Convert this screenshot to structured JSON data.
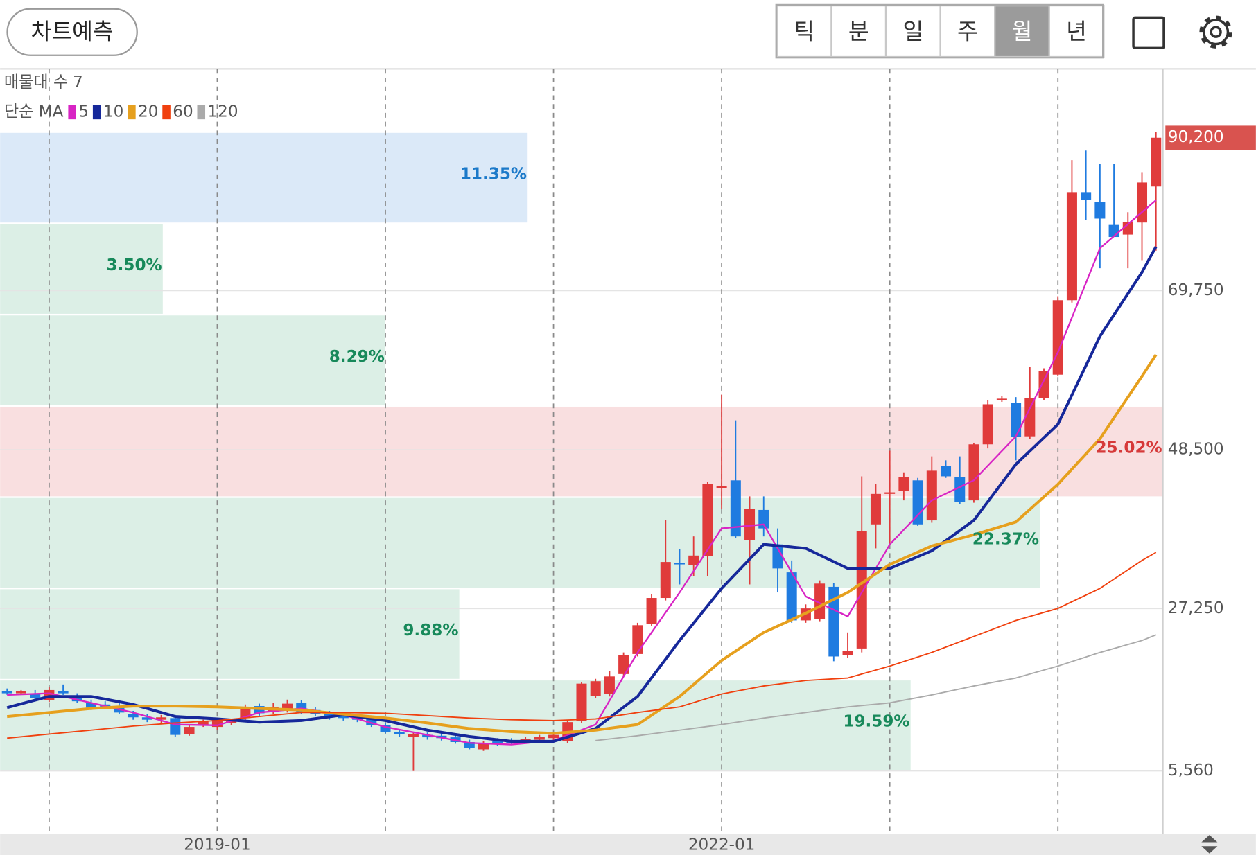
{
  "ui": {
    "predict_button": "차트예측",
    "periods": [
      "틱",
      "분",
      "일",
      "주",
      "월",
      "년"
    ],
    "selected_period": "월"
  },
  "chart_data": {
    "type": "candlestick",
    "categories": [
      null,
      null,
      null,
      null,
      null,
      null,
      null,
      null,
      null,
      null,
      null,
      null,
      null,
      null,
      null,
      "2019-01",
      null,
      null,
      null,
      null,
      null,
      null,
      null,
      null,
      null,
      null,
      null,
      null,
      null,
      null,
      null,
      null,
      null,
      null,
      null,
      null,
      null,
      null,
      null,
      null,
      null,
      null,
      null,
      null,
      null,
      null,
      null,
      null,
      null,
      null,
      null,
      "2022-01",
      null,
      null,
      null,
      null,
      null,
      null,
      null,
      null,
      null,
      null,
      null,
      null,
      null,
      null,
      null,
      null,
      null,
      null,
      null,
      null,
      null,
      null,
      null,
      null,
      null,
      null,
      null,
      null,
      null,
      null,
      null
    ],
    "open": [
      16260,
      15940,
      15940,
      14980,
      16260,
      15620,
      14660,
      14440,
      14230,
      13160,
      12730,
      12410,
      12630,
      10490,
      11770,
      11450,
      11980,
      12630,
      14230,
      13480,
      13700,
      14660,
      13700,
      13160,
      12950,
      12730,
      12520,
      11660,
      10810,
      10160,
      10380,
      10270,
      10060,
      9420,
      8450,
      9520,
      9520,
      9520,
      9740,
      9950,
      9520,
      12200,
      15620,
      15840,
      18510,
      21190,
      25250,
      28680,
      33380,
      33060,
      34240,
      43330,
      44400,
      36380,
      40450,
      35840,
      32100,
      25680,
      25890,
      30170,
      21080,
      21930,
      38520,
      42590,
      43010,
      44400,
      39050,
      46330,
      44830,
      41730,
      49220,
      55100,
      54780,
      50290,
      55430,
      58530,
      68480,
      82920,
      81640,
      78540,
      77250,
      78860,
      83670
    ],
    "high": [
      16580,
      16370,
      16370,
      16800,
      17120,
      15940,
      15090,
      14870,
      14660,
      13590,
      13160,
      13050,
      13050,
      11770,
      12410,
      12630,
      12520,
      14440,
      14550,
      14660,
      15090,
      14980,
      14120,
      13590,
      13370,
      13160,
      12840,
      11980,
      11130,
      10700,
      10700,
      10590,
      10490,
      9740,
      9520,
      9950,
      9950,
      10160,
      10380,
      10700,
      12300,
      17440,
      17870,
      18940,
      21400,
      25360,
      29210,
      39050,
      35200,
      36910,
      44190,
      55850,
      52430,
      42260,
      42260,
      37980,
      33700,
      27820,
      31030,
      30710,
      24070,
      44940,
      43870,
      48360,
      45470,
      44730,
      47610,
      47080,
      47610,
      49430,
      55100,
      55640,
      55530,
      59600,
      59380,
      69010,
      87200,
      88490,
      86670,
      86670,
      80250,
      85600,
      90950
    ],
    "low": [
      15730,
      15730,
      14870,
      14770,
      15730,
      14660,
      13700,
      13800,
      13160,
      12410,
      12090,
      11980,
      10160,
      10270,
      11450,
      11020,
      11660,
      12410,
      12950,
      13160,
      13370,
      13160,
      12840,
      12410,
      12300,
      12090,
      11450,
      10590,
      10160,
      5560,
      9740,
      9630,
      9200,
      8450,
      8240,
      8880,
      9090,
      9310,
      9520,
      9630,
      9310,
      11980,
      15300,
      15510,
      18190,
      20860,
      24930,
      28350,
      30490,
      31560,
      31560,
      40550,
      36700,
      30490,
      36910,
      29420,
      25360,
      25360,
      25570,
      20220,
      20650,
      21400,
      35310,
      35840,
      41730,
      38310,
      38730,
      44730,
      41190,
      41410,
      48680,
      54890,
      47080,
      49970,
      55100,
      58310,
      68160,
      79180,
      72760,
      76930,
      72760,
      73830,
      75110
    ],
    "close": [
      15940,
      16260,
      15300,
      16370,
      15940,
      14870,
      14020,
      14020,
      13370,
      12730,
      12410,
      12730,
      10380,
      11450,
      12200,
      12410,
      12300,
      14120,
      13270,
      14120,
      14550,
      13480,
      13160,
      12840,
      12630,
      12410,
      11660,
      10810,
      10490,
      10490,
      10060,
      9950,
      9420,
      8670,
      9310,
      9200,
      9310,
      9840,
      10160,
      10380,
      12090,
      17230,
      17550,
      18190,
      21080,
      25040,
      28680,
      33490,
      33170,
      34350,
      43870,
      43660,
      36910,
      40550,
      37980,
      32630,
      25680,
      27280,
      30600,
      20860,
      21610,
      37660,
      42590,
      42800,
      44830,
      38520,
      45690,
      44940,
      41520,
      49220,
      54570,
      55320,
      50180,
      55430,
      59060,
      68480,
      82920,
      81850,
      79390,
      76930,
      78970,
      84210,
      90200
    ],
    "up_color": "#e03b3b",
    "down_color": "#1f7be0",
    "last_close_label": "90,200",
    "last_close_color": "#d9534f",
    "ylim": [
      -2680,
      99190
    ],
    "yticks": [
      {
        "value": 5560,
        "label": "5,560"
      },
      {
        "value": 27250,
        "label": "27,250"
      },
      {
        "value": 48500,
        "label": "48,500"
      },
      {
        "value": 69750,
        "label": "69,750"
      }
    ],
    "grid": true,
    "ma_label": "단순 MA",
    "series": [
      {
        "name": "5",
        "color": "#d824c4",
        "x": [
          0,
          3,
          6,
          9,
          12,
          15,
          18,
          21,
          24,
          27,
          30,
          33,
          36,
          39,
          42,
          45,
          48,
          51,
          54,
          57,
          60,
          63,
          66,
          69,
          72,
          75,
          78,
          81,
          82
        ],
        "values": [
          15730,
          15940,
          14660,
          13370,
          11770,
          11660,
          13370,
          13910,
          13050,
          11450,
          10380,
          9310,
          9090,
          9630,
          11770,
          21400,
          29420,
          37980,
          38520,
          28890,
          26210,
          35840,
          41730,
          44400,
          50290,
          61520,
          75430,
          80250,
          81850
        ]
      },
      {
        "name": "10",
        "color": "#16289a",
        "x": [
          0,
          3,
          6,
          9,
          12,
          15,
          18,
          21,
          24,
          27,
          30,
          33,
          36,
          39,
          42,
          45,
          48,
          51,
          54,
          57,
          60,
          63,
          66,
          69,
          72,
          75,
          78,
          81,
          82
        ],
        "values": [
          14020,
          15510,
          15510,
          14440,
          12840,
          12520,
          12090,
          12300,
          13050,
          12300,
          11020,
          10160,
          9520,
          9520,
          11230,
          15510,
          23000,
          29960,
          35840,
          35310,
          32630,
          32630,
          34990,
          39050,
          46540,
          51890,
          63660,
          72220,
          75650
        ]
      },
      {
        "name": "20",
        "color": "#e6a01e",
        "x": [
          0,
          3,
          6,
          9,
          12,
          15,
          18,
          21,
          24,
          27,
          30,
          33,
          36,
          39,
          42,
          45,
          48,
          51,
          54,
          57,
          60,
          63,
          66,
          69,
          72,
          75,
          78,
          81,
          82
        ],
        "values": [
          12840,
          13370,
          13910,
          14230,
          14230,
          14120,
          13910,
          13700,
          13160,
          12630,
          11980,
          11230,
          10810,
          10590,
          11020,
          11770,
          15510,
          20330,
          24070,
          26640,
          29420,
          33170,
          35630,
          37130,
          38840,
          43870,
          49970,
          58310,
          61200
        ]
      },
      {
        "name": "60",
        "color": "#f0400e",
        "x": [
          0,
          3,
          6,
          9,
          12,
          15,
          18,
          21,
          24,
          27,
          30,
          33,
          36,
          39,
          42,
          45,
          48,
          51,
          54,
          57,
          60,
          63,
          66,
          69,
          72,
          75,
          78,
          81,
          82
        ],
        "values": [
          9950,
          10490,
          11020,
          11560,
          11980,
          12300,
          12840,
          13370,
          13370,
          13270,
          12950,
          12630,
          12410,
          12300,
          12520,
          13370,
          14120,
          15840,
          16910,
          17650,
          17980,
          19580,
          21400,
          23540,
          25680,
          27280,
          29960,
          33700,
          34770
        ]
      },
      {
        "name": "120",
        "color": "#aaaaaa",
        "x": [
          42,
          45,
          48,
          51,
          54,
          57,
          60,
          63,
          66,
          69,
          72,
          75,
          78,
          81,
          82
        ],
        "values": [
          9630,
          10270,
          11020,
          11770,
          12630,
          13370,
          14120,
          14660,
          15730,
          16910,
          17980,
          19580,
          21400,
          23000,
          23750
        ]
      }
    ],
    "volume_profile": {
      "label": "매물대 수",
      "count": 7,
      "range": [
        5560,
        90950
      ],
      "values": [
        19.59,
        9.88,
        22.37,
        25.02,
        8.29,
        3.5,
        11.35
      ],
      "value_labels": [
        "19.59%",
        "9.88%",
        "22.37%",
        "25.02%",
        "8.29%",
        "3.50%",
        "11.35%"
      ],
      "colors": {
        "normal": "#dcefe6",
        "normal_text": "#17895a",
        "max": "#f9dfe0",
        "max_text": "#d63a3a",
        "current": "#dbe9f8",
        "current_text": "#1b79c9"
      }
    }
  }
}
